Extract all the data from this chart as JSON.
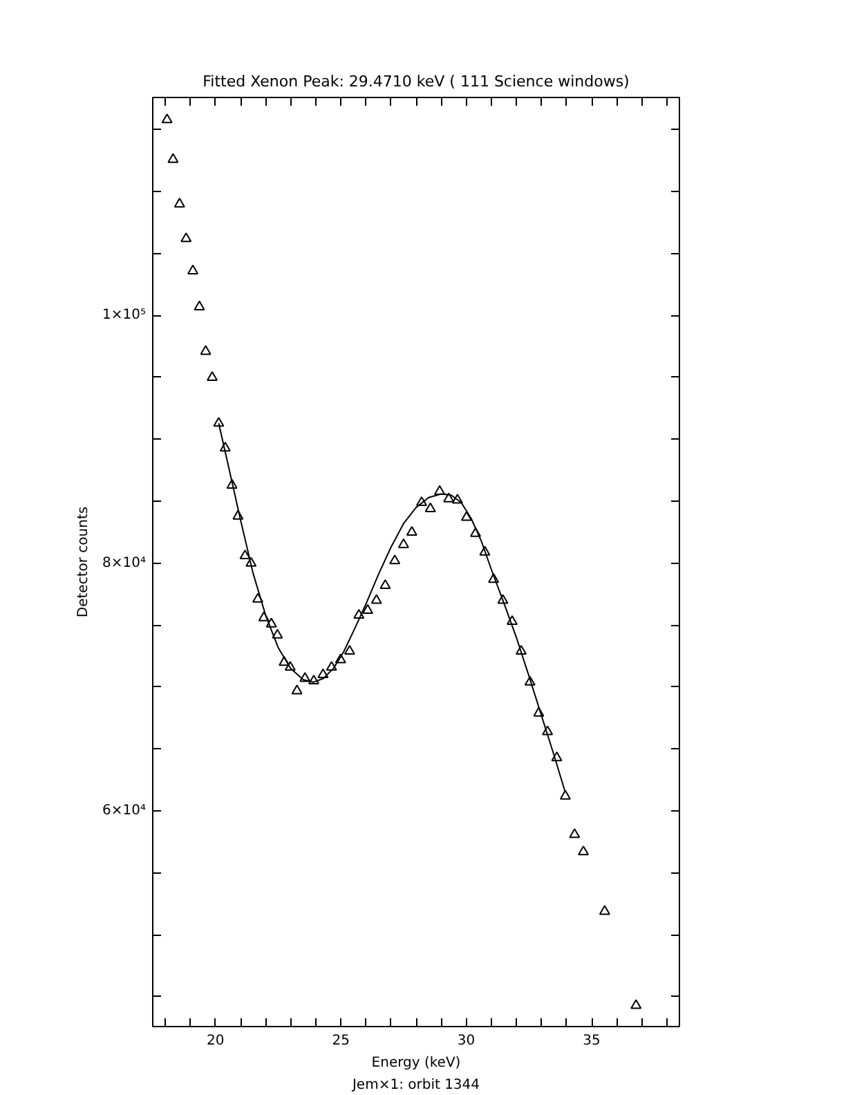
{
  "chart_data": {
    "type": "scatter",
    "title": "Fitted Xenon Peak: 29.4710 keV ( 111 Science windows)",
    "xlabel": "Energy (keV)",
    "ylabel": "Detector counts",
    "annotations": [
      "Jem×1: orbit 1344"
    ],
    "xlim": [
      17.5,
      38.5
    ],
    "ylim": [
      42600,
      117600
    ],
    "xticks": [
      {
        "value": 18,
        "label": null
      },
      {
        "value": 19,
        "label": null
      },
      20,
      {
        "value": 21,
        "label": null
      },
      {
        "value": 22,
        "label": null
      },
      {
        "value": 23,
        "label": null
      },
      {
        "value": 24,
        "label": null
      },
      25,
      {
        "value": 26,
        "label": null
      },
      {
        "value": 27,
        "label": null
      },
      {
        "value": 28,
        "label": null
      },
      {
        "value": 29,
        "label": null
      },
      30,
      {
        "value": 31,
        "label": null
      },
      {
        "value": 32,
        "label": null
      },
      {
        "value": 33,
        "label": null
      },
      {
        "value": 34,
        "label": null
      },
      35,
      {
        "value": 36,
        "label": null
      },
      {
        "value": 37,
        "label": null
      },
      {
        "value": 38,
        "label": null
      }
    ],
    "yticks": [
      {
        "value": 45000,
        "label": null
      },
      {
        "value": 50000,
        "label": null
      },
      {
        "value": 55000,
        "label": null
      },
      {
        "value": 60000,
        "label": "6×10⁴"
      },
      {
        "value": 65000,
        "label": null
      },
      {
        "value": 70000,
        "label": null
      },
      {
        "value": 75000,
        "label": null
      },
      {
        "value": 80000,
        "label": "8×10⁴"
      },
      {
        "value": 85000,
        "label": null
      },
      {
        "value": 90000,
        "label": null
      },
      {
        "value": 95000,
        "label": null
      },
      {
        "value": 100000,
        "label": "1×10⁵"
      },
      {
        "value": 105000,
        "label": null
      },
      {
        "value": 110000,
        "label": null
      },
      {
        "value": 115000,
        "label": null
      }
    ],
    "grid": false,
    "series": [
      {
        "marker": "triangle",
        "color": "#000000",
        "x": [
          18.07,
          18.31,
          18.57,
          18.83,
          19.1,
          19.36,
          19.61,
          19.87,
          20.13,
          20.39,
          20.66,
          20.9,
          21.18,
          21.42,
          21.69,
          21.93,
          22.23,
          22.47,
          22.74,
          22.98,
          23.25,
          23.57,
          23.92,
          24.29,
          24.63,
          24.99,
          25.35,
          25.72,
          26.07,
          26.42,
          26.77,
          27.15,
          27.5,
          27.83,
          28.22,
          28.57,
          28.94,
          29.3,
          29.65,
          30.01,
          30.37,
          30.74,
          31.09,
          31.46,
          31.83,
          32.19,
          32.54,
          32.89,
          33.24,
          33.61,
          33.95,
          34.32,
          34.67,
          35.52,
          36.77
        ],
        "values": [
          115800,
          112600,
          109000,
          106200,
          103600,
          100700,
          97100,
          95000,
          91300,
          89300,
          86300,
          83800,
          80600,
          80000,
          77100,
          75600,
          75100,
          74200,
          72000,
          71600,
          69700,
          70700,
          70500,
          71000,
          71600,
          72200,
          72900,
          75800,
          76200,
          77000,
          78200,
          80200,
          81500,
          82500,
          84900,
          84400,
          85800,
          85200,
          85100,
          83700,
          82400,
          80900,
          78700,
          77000,
          75300,
          72900,
          70400,
          67900,
          66400,
          64300,
          61200,
          58100,
          56700,
          51900,
          44300
        ]
      },
      {
        "type": "line",
        "marker": "none",
        "line_style": "solid",
        "color": "#000000",
        "x": [
          20.13,
          20.5,
          21.0,
          21.5,
          22.0,
          22.5,
          23.0,
          23.5,
          23.9,
          24.3,
          24.7,
          25.1,
          25.5,
          26.0,
          26.5,
          27.0,
          27.5,
          28.0,
          28.5,
          29.0,
          29.4,
          29.8,
          30.2,
          30.6,
          31.0,
          31.5,
          32.0,
          32.5,
          33.0,
          33.5,
          33.95
        ],
        "values": [
          91300,
          88000,
          83500,
          79200,
          75800,
          73200,
          71500,
          70600,
          70400,
          70700,
          71500,
          72800,
          74500,
          76700,
          79100,
          81300,
          83200,
          84500,
          85300,
          85600,
          85500,
          84900,
          83600,
          81800,
          79500,
          76800,
          74000,
          70900,
          67700,
          64500,
          61500
        ]
      }
    ]
  }
}
